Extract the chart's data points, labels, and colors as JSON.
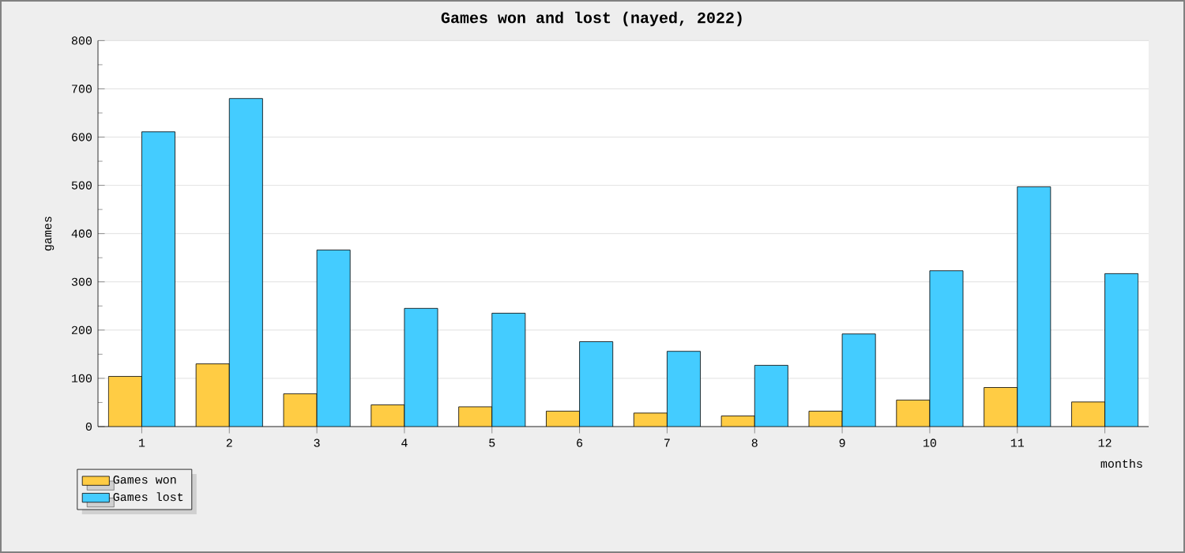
{
  "chart_data": {
    "type": "bar",
    "title": "Games won and lost (nayed, 2022)",
    "xlabel": "months",
    "ylabel": "games",
    "categories": [
      "1",
      "2",
      "3",
      "4",
      "5",
      "6",
      "7",
      "8",
      "9",
      "10",
      "11",
      "12"
    ],
    "series": [
      {
        "name": "Games won",
        "color": "#ffcc44",
        "values": [
          104,
          130,
          68,
          45,
          41,
          32,
          28,
          22,
          32,
          55,
          81,
          51
        ]
      },
      {
        "name": "Games lost",
        "color": "#44ccff",
        "values": [
          611,
          680,
          366,
          245,
          235,
          176,
          156,
          127,
          192,
          323,
          497,
          317
        ]
      }
    ],
    "ylim": [
      0,
      800
    ],
    "yticks": [
      0,
      100,
      200,
      300,
      400,
      500,
      600,
      700,
      800
    ],
    "grid": "y",
    "legend": "bottom left"
  }
}
